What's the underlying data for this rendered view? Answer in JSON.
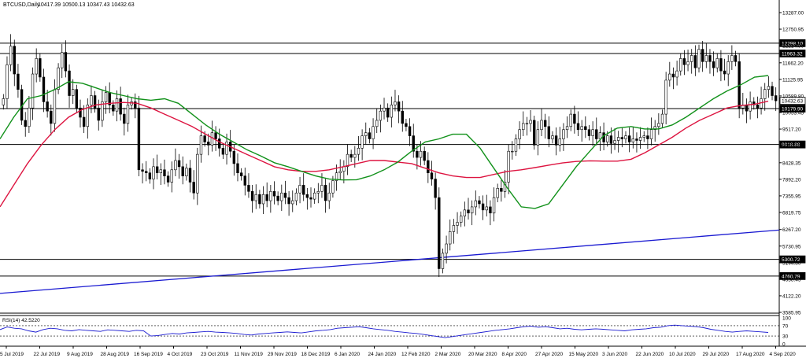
{
  "chart_data": {
    "type": "candlestick",
    "header": {
      "symbol": "BTCUSD,Daily",
      "ohlc": "10417.39 10500.13 10347.43 10432.63"
    },
    "price_axis": {
      "min": 3585.95,
      "max": 13287.0,
      "ticks": [
        13287.0,
        12750.95,
        12214.9,
        11662.2,
        11125.95,
        10589.8,
        10053.45,
        9517.2,
        8980.95,
        8428.35,
        7892.2,
        7355.95,
        6819.75,
        6267.2,
        5730.95,
        5194.8,
        4658.45,
        4122.2,
        3585.95
      ]
    },
    "time_axis": {
      "labels": [
        "5 Jul 2019",
        "22 Jul 2019",
        "9 Aug 2019",
        "28 Aug 2019",
        "16 Sep 2019",
        "4 Oct 2019",
        "23 Oct 2019",
        "11 Nov 2019",
        "29 Nov 2019",
        "18 Dec 2019",
        "6 Jan 2020",
        "24 Jan 2020",
        "12 Feb 2020",
        "2 Mar 2020",
        "20 Mar 2020",
        "8 Apr 2020",
        "27 Apr 2020",
        "15 May 2020",
        "3 Jun 2020",
        "22 Jun 2020",
        "10 Jul 2020",
        "29 Jul 2020",
        "17 Aug 2020",
        "4 Sep 2020"
      ]
    },
    "horizontal_levels": [
      {
        "value": 12298.1,
        "label": "12298.10"
      },
      {
        "value": 11963.32,
        "label": "11963.32"
      },
      {
        "value": 10432.63,
        "label": "10432.63"
      },
      {
        "value": 10179.9,
        "label": "10179.90"
      },
      {
        "value": 9018.88,
        "label": "9018.88"
      },
      {
        "value": 5300.72,
        "label": "5300.72"
      },
      {
        "value": 4760.79,
        "label": "4760.79"
      }
    ],
    "trendline": {
      "start": 4200,
      "end": 6250,
      "color": "#1a1ad1"
    },
    "ma_fast": {
      "color": "#11911a",
      "values": [
        9200,
        9900,
        10500,
        10600,
        10800,
        11050,
        11000,
        10850,
        10700,
        10600,
        10500,
        10450,
        10500,
        10350,
        10000,
        9650,
        9350,
        9100,
        8850,
        8650,
        8430,
        8300,
        8150,
        8000,
        7900,
        7870,
        7880,
        8000,
        8200,
        8450,
        8800,
        9100,
        9200,
        9350,
        9350,
        8900,
        8250,
        7600,
        7000,
        6950,
        7100,
        7700,
        8300,
        8800,
        9300,
        9550,
        9600,
        9520,
        9520,
        9650,
        9900,
        10200,
        10500,
        10750,
        10950,
        11200,
        11250
      ]
    },
    "ma_slow": {
      "color": "#dd1440",
      "values": [
        7000,
        7700,
        8400,
        9000,
        9500,
        9900,
        10150,
        10300,
        10350,
        10380,
        10350,
        10200,
        10000,
        9800,
        9600,
        9350,
        9100,
        8900,
        8700,
        8500,
        8300,
        8200,
        8150,
        8150,
        8200,
        8300,
        8400,
        8500,
        8500,
        8450,
        8400,
        8250,
        8100,
        8000,
        7950,
        7950,
        8050,
        8150,
        8200,
        8270,
        8350,
        8420,
        8470,
        8490,
        8480,
        8480,
        8540,
        8750,
        9000,
        9250,
        9550,
        9800,
        10000,
        10200,
        10280,
        10320,
        10420
      ]
    },
    "closes": [
      10500,
      11600,
      12200,
      11300,
      10800,
      9800,
      9600,
      10200,
      11300,
      11800,
      11200,
      10400,
      10100,
      9700,
      10800,
      11500,
      12000,
      11400,
      10600,
      10800,
      10200,
      9900,
      9600,
      10300,
      10600,
      10200,
      9800,
      10400,
      10700,
      10300,
      10100,
      10500,
      10000,
      9700,
      10300,
      10400,
      10200,
      8200,
      8150,
      8100,
      7900,
      8300,
      8100,
      8200,
      8000,
      7800,
      8200,
      8500,
      8300,
      8000,
      8250,
      7800,
      7450,
      8700,
      9300,
      9100,
      9000,
      9400,
      9200,
      8900,
      8700,
      9100,
      8800,
      8400,
      8100,
      8000,
      7700,
      7500,
      7200,
      7400,
      7100,
      7400,
      7200,
      7500,
      7350,
      7200,
      7450,
      7300,
      7100,
      7200,
      7450,
      7700,
      7400,
      7300,
      7250,
      7450,
      7500,
      7700,
      7200,
      7450,
      7850,
      8100,
      8150,
      8300,
      8700,
      8600,
      8700,
      8900,
      9300,
      9400,
      9200,
      9600,
      9800,
      10100,
      10200,
      9900,
      10300,
      10400,
      10100,
      9700,
      9600,
      9300,
      8800,
      8600,
      8800,
      8500,
      8100,
      7900,
      7300,
      5000,
      5500,
      5800,
      6200,
      6400,
      6500,
      6700,
      6900,
      6800,
      7000,
      7200,
      7100,
      6900,
      7000,
      6800,
      7300,
      7600,
      7500,
      7800,
      8800,
      8800,
      9200,
      9500,
      9700,
      9700,
      9800,
      9000,
      9500,
      9800,
      9600,
      9200,
      9300,
      9000,
      9200,
      9500,
      9600,
      10000,
      9700,
      9500,
      9600,
      9500,
      9300,
      9500,
      9200,
      9400,
      9100,
      9300,
      9050,
      9150,
      9250,
      9200,
      9300,
      9100,
      9200,
      9150,
      9250,
      9300,
      9200,
      9500,
      9600,
      9700,
      10000,
      11100,
      11300,
      11200,
      11400,
      11800,
      11600,
      11700,
      11900,
      11500,
      12100,
      11700,
      11900,
      11700,
      11500,
      11800,
      11400,
      11300,
      11700,
      11900,
      11700,
      10200,
      10300,
      10100,
      10400,
      10300,
      10200,
      10500,
      10800,
      10900,
      10600,
      10432
    ],
    "rsi": {
      "label": "RSI(14) 42.5220",
      "ticks": [
        100,
        70,
        30,
        0
      ],
      "levels": [
        70,
        30
      ],
      "values": [
        55,
        65,
        60,
        58,
        50,
        45,
        55,
        60,
        58,
        52,
        50,
        55,
        52,
        50,
        48,
        54,
        52,
        50,
        48,
        52,
        50,
        30,
        32,
        36,
        40,
        38,
        42,
        44,
        46,
        48,
        45,
        44,
        42,
        40,
        36,
        34,
        38,
        40,
        42,
        44,
        46,
        44,
        42,
        46,
        50,
        52,
        55,
        60,
        62,
        64,
        66,
        62,
        58,
        55,
        52,
        48,
        45,
        42,
        40,
        36,
        32,
        28,
        24,
        28,
        32,
        36,
        40,
        44,
        48,
        52,
        55,
        58,
        62,
        66,
        68,
        64,
        66,
        62,
        58,
        60,
        56,
        54,
        56,
        58,
        56,
        54,
        52,
        50,
        54,
        56,
        58,
        62,
        64,
        70,
        72,
        70,
        68,
        66,
        62,
        56,
        52,
        48,
        45,
        48,
        50,
        48,
        46,
        44
      ]
    }
  }
}
